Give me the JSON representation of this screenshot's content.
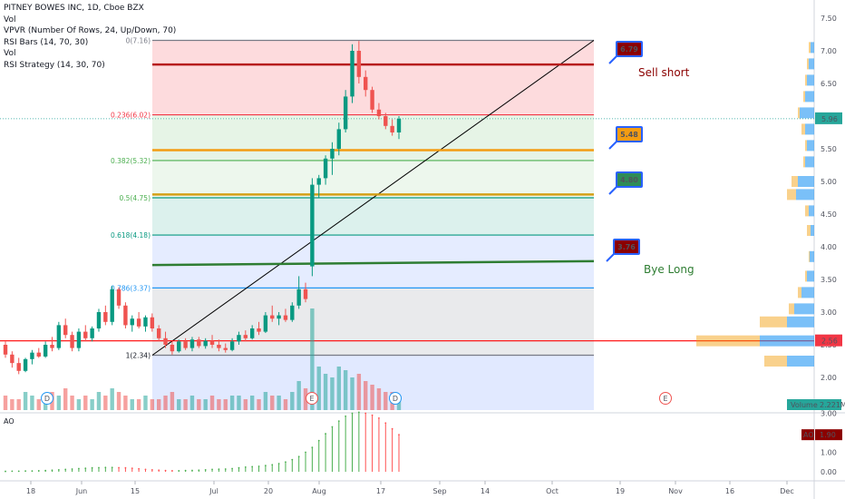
{
  "legend": {
    "symbol": "PITNEY BOWES INC, 1D, Cboe BZX",
    "line2": "Vol",
    "line3": "VPVR (Number Of Rows, 24, Up/Down, 70)",
    "line4": "RSI Bars (14, 70, 30)",
    "line5": "Vol",
    "line6": "RSI Strategy (14, 30, 70)"
  },
  "sub_pane_label": "AO",
  "annotations": {
    "sell_short": "Sell short",
    "bye_long": "Bye Long"
  },
  "colors": {
    "up": "#26a69a",
    "up_candle": "#089981",
    "down": "#ef5350",
    "tag_red": "#8b0000",
    "tag_orange": "#f39c12",
    "tag_green": "#2e8b57",
    "hline_red": "#ff0000",
    "ao_green": "#4caf50",
    "ao_red": "#ff5252"
  },
  "chart_data": {
    "type": "candlestick",
    "price_axis": {
      "ticks": [
        "7.50",
        "7.00",
        "6.50",
        "6.00",
        "5.50",
        "5.00",
        "4.50",
        "4.00",
        "3.50",
        "3.00",
        "2.50",
        "2.00"
      ],
      "range": [
        1.5,
        7.6
      ]
    },
    "time_axis": {
      "ticks": [
        "18",
        "Jun",
        "15",
        "Jul",
        "20",
        "Aug",
        "17",
        "Sep",
        "14",
        "Oct",
        "19",
        "Nov",
        "16",
        "Dec"
      ]
    },
    "price_labels": {
      "last": "5.96",
      "level": "2.56",
      "volume_label": "Volume",
      "volume_value": "2.221M"
    },
    "ao_axis": {
      "ticks": [
        "3.00",
        "2.00",
        "1.00",
        "0.00"
      ],
      "label": "AO",
      "value": "1.90"
    },
    "fib_levels": [
      {
        "label": "0(7.16)",
        "value": 7.16
      },
      {
        "label": "0.236(6.02)",
        "value": 6.02
      },
      {
        "label": "0.382(5.32)",
        "value": 5.32
      },
      {
        "label": "0.5(4.75)",
        "value": 4.75
      },
      {
        "label": "0.618(4.18)",
        "value": 4.18
      },
      {
        "label": "0.786(3.37)",
        "value": 3.37
      },
      {
        "label": "1(2.34)",
        "value": 2.34
      }
    ],
    "level_tags": [
      {
        "text": "6.79",
        "value": 6.79
      },
      {
        "text": "5.48",
        "value": 5.48
      },
      {
        "text": "4.80",
        "value": 4.8
      },
      {
        "text": "3.76",
        "value": 3.76
      }
    ],
    "candles": [
      [
        2.5,
        2.55,
        2.3,
        2.35
      ],
      [
        2.35,
        2.4,
        2.15,
        2.22
      ],
      [
        2.22,
        2.3,
        2.05,
        2.1
      ],
      [
        2.1,
        2.3,
        2.08,
        2.28
      ],
      [
        2.28,
        2.42,
        2.2,
        2.38
      ],
      [
        2.38,
        2.45,
        2.3,
        2.32
      ],
      [
        2.32,
        2.55,
        2.3,
        2.5
      ],
      [
        2.5,
        2.62,
        2.4,
        2.45
      ],
      [
        2.45,
        2.85,
        2.42,
        2.8
      ],
      [
        2.8,
        2.9,
        2.6,
        2.65
      ],
      [
        2.65,
        2.7,
        2.4,
        2.45
      ],
      [
        2.45,
        2.75,
        2.4,
        2.7
      ],
      [
        2.7,
        2.8,
        2.55,
        2.6
      ],
      [
        2.6,
        2.78,
        2.55,
        2.75
      ],
      [
        2.75,
        3.05,
        2.7,
        3.0
      ],
      [
        3.0,
        3.1,
        2.8,
        2.85
      ],
      [
        2.85,
        3.4,
        2.8,
        3.35
      ],
      [
        3.35,
        3.38,
        3.05,
        3.1
      ],
      [
        3.1,
        3.15,
        2.75,
        2.8
      ],
      [
        2.8,
        2.95,
        2.7,
        2.9
      ],
      [
        2.9,
        3.0,
        2.75,
        2.78
      ],
      [
        2.78,
        2.95,
        2.7,
        2.92
      ],
      [
        2.92,
        2.98,
        2.7,
        2.75
      ],
      [
        2.75,
        2.8,
        2.55,
        2.6
      ],
      [
        2.6,
        2.7,
        2.45,
        2.5
      ],
      [
        2.5,
        2.55,
        2.35,
        2.4
      ],
      [
        2.4,
        2.58,
        2.38,
        2.55
      ],
      [
        2.55,
        2.6,
        2.42,
        2.45
      ],
      [
        2.45,
        2.62,
        2.4,
        2.58
      ],
      [
        2.58,
        2.62,
        2.45,
        2.48
      ],
      [
        2.48,
        2.6,
        2.44,
        2.56
      ],
      [
        2.56,
        2.65,
        2.45,
        2.5
      ],
      [
        2.5,
        2.58,
        2.4,
        2.45
      ],
      [
        2.45,
        2.52,
        2.38,
        2.42
      ],
      [
        2.42,
        2.6,
        2.4,
        2.55
      ],
      [
        2.55,
        2.7,
        2.5,
        2.65
      ],
      [
        2.65,
        2.72,
        2.55,
        2.6
      ],
      [
        2.6,
        2.8,
        2.58,
        2.75
      ],
      [
        2.75,
        2.85,
        2.65,
        2.7
      ],
      [
        2.7,
        3.0,
        2.68,
        2.95
      ],
      [
        2.95,
        3.1,
        2.85,
        2.9
      ],
      [
        2.9,
        3.0,
        2.8,
        2.95
      ],
      [
        2.95,
        3.05,
        2.85,
        2.88
      ],
      [
        2.88,
        3.15,
        2.85,
        3.1
      ],
      [
        3.1,
        3.55,
        3.05,
        3.35
      ],
      [
        3.35,
        3.45,
        3.15,
        3.2
      ],
      [
        3.7,
        5.05,
        3.55,
        4.95
      ],
      [
        4.95,
        5.1,
        4.75,
        5.05
      ],
      [
        5.05,
        5.4,
        4.95,
        5.35
      ],
      [
        5.35,
        5.6,
        5.1,
        5.5
      ],
      [
        5.5,
        5.9,
        5.4,
        5.8
      ],
      [
        5.8,
        6.4,
        5.75,
        6.3
      ],
      [
        6.3,
        7.1,
        6.2,
        7.0
      ],
      [
        7.0,
        7.15,
        6.5,
        6.6
      ],
      [
        6.6,
        6.7,
        6.3,
        6.4
      ],
      [
        6.4,
        6.45,
        6.05,
        6.1
      ],
      [
        6.1,
        6.2,
        5.95,
        6.0
      ],
      [
        6.0,
        6.05,
        5.8,
        5.85
      ],
      [
        5.85,
        5.95,
        5.7,
        5.75
      ],
      [
        5.75,
        6.0,
        5.65,
        5.96
      ]
    ],
    "volume_bars": [
      4,
      3,
      3,
      5,
      4,
      3,
      4,
      5,
      4,
      6,
      4,
      3,
      4,
      3,
      5,
      4,
      6,
      5,
      4,
      3,
      3,
      4,
      3,
      3,
      4,
      5,
      3,
      3,
      4,
      3,
      3,
      4,
      3,
      3,
      4,
      4,
      3,
      4,
      3,
      5,
      4,
      4,
      3,
      5,
      8,
      6,
      28,
      12,
      10,
      9,
      12,
      11,
      9,
      10,
      8,
      7,
      6,
      5,
      5,
      4
    ],
    "ao_values": [
      0.02,
      0.03,
      0.03,
      0.04,
      0.04,
      0.05,
      0.06,
      0.08,
      0.1,
      0.12,
      0.14,
      0.16,
      0.18,
      0.2,
      0.21,
      0.22,
      0.22,
      0.21,
      0.2,
      0.18,
      0.15,
      0.12,
      0.1,
      0.08,
      0.06,
      0.05,
      0.05,
      0.06,
      0.07,
      0.08,
      0.1,
      0.12,
      0.13,
      0.14,
      0.16,
      0.2,
      0.24,
      0.26,
      0.28,
      0.32,
      0.36,
      0.42,
      0.5,
      0.62,
      0.78,
      1.0,
      1.25,
      1.6,
      1.95,
      2.3,
      2.6,
      2.85,
      3.0,
      3.05,
      3.0,
      2.9,
      2.75,
      2.5,
      2.2,
      1.9
    ]
  }
}
